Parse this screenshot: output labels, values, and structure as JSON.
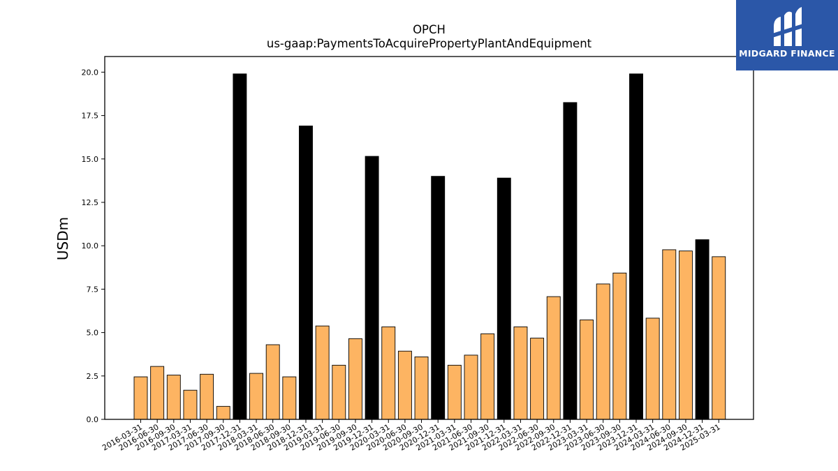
{
  "chart_data": {
    "type": "bar",
    "title": "OPCH",
    "subtitle": "us-gaap:PaymentsToAcquirePropertyPlantAndEquipment",
    "xlabel": "",
    "ylabel": "USDm",
    "ylim": [
      0,
      20.9
    ],
    "yticks": [
      "0.0",
      "2.5",
      "5.0",
      "7.5",
      "10.0",
      "12.5",
      "15.0",
      "17.5",
      "20.0"
    ],
    "grid": false,
    "colors": {
      "quarter": "#fdb462",
      "year_end": "#000000"
    },
    "categories": [
      "2016-03-31",
      "2016-06-30",
      "2016-09-30",
      "2017-03-31",
      "2017-06-30",
      "2017-09-30",
      "2017-12-31",
      "2018-03-31",
      "2018-06-30",
      "2018-09-30",
      "2018-12-31",
      "2019-03-31",
      "2019-06-30",
      "2019-09-30",
      "2019-12-31",
      "2020-03-31",
      "2020-06-30",
      "2020-09-30",
      "2020-12-31",
      "2021-03-31",
      "2021-06-30",
      "2021-09-30",
      "2021-12-31",
      "2022-03-31",
      "2022-06-30",
      "2022-09-30",
      "2022-12-31",
      "2023-03-31",
      "2023-06-30",
      "2023-09-30",
      "2023-12-31",
      "2024-03-31",
      "2024-06-30",
      "2024-09-30",
      "2024-12-31",
      "2025-03-31"
    ],
    "values": [
      2.45,
      3.05,
      2.55,
      1.68,
      2.6,
      0.75,
      19.9,
      2.65,
      4.3,
      2.45,
      16.9,
      5.38,
      3.12,
      4.65,
      15.15,
      5.33,
      3.93,
      3.6,
      14.0,
      3.12,
      3.7,
      4.93,
      13.9,
      5.33,
      4.68,
      7.07,
      18.25,
      5.73,
      7.8,
      8.43,
      19.9,
      5.83,
      9.77,
      9.7,
      10.35,
      9.37
    ],
    "year_end": [
      false,
      false,
      false,
      false,
      false,
      false,
      true,
      false,
      false,
      false,
      true,
      false,
      false,
      false,
      true,
      false,
      false,
      false,
      true,
      false,
      false,
      false,
      true,
      false,
      false,
      false,
      true,
      false,
      false,
      false,
      true,
      false,
      false,
      false,
      true,
      false
    ]
  },
  "logo": {
    "text": "MIDGARD FINANCE"
  }
}
